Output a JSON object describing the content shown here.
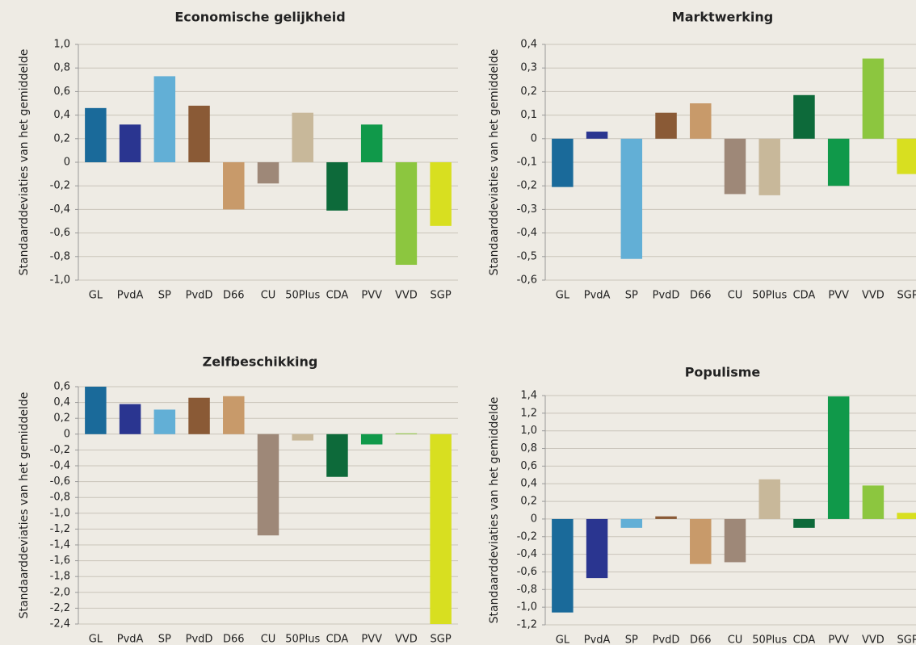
{
  "chart_data": [
    {
      "type": "bar",
      "title": "Economische gelijkheid",
      "y_label": "Standaarddeviaties van het gemiddelde",
      "categories": [
        "GL",
        "PvdA",
        "SP",
        "PvdD",
        "D66",
        "CU",
        "50Plus",
        "CDA",
        "PVV",
        "VVD",
        "SGP"
      ],
      "values": [
        0.46,
        0.32,
        0.73,
        0.48,
        -0.4,
        -0.18,
        0.42,
        -0.41,
        0.32,
        -0.87,
        -0.54
      ],
      "colors": [
        "#1a6a9a",
        "#2a3590",
        "#62afd6",
        "#8a5a36",
        "#c89a6a",
        "#9e8878",
        "#c8b89a",
        "#0d6a3a",
        "#10994a",
        "#8cc63f",
        "#d8df20"
      ],
      "ylim": [
        -1.0,
        1.0
      ],
      "grid": true,
      "yticks": [
        {
          "value": 1.0,
          "label": "1,0"
        },
        {
          "value": 0.8,
          "label": "0,8"
        },
        {
          "value": 0.6,
          "label": "0,6"
        },
        {
          "value": 0.4,
          "label": "0,4"
        },
        {
          "value": 0.2,
          "label": "0,2"
        },
        0,
        {
          "value": -0.2,
          "label": "-0,2"
        },
        {
          "value": -0.4,
          "label": "-0,4"
        },
        {
          "value": -0.6,
          "label": "-0,6"
        },
        {
          "value": -0.8,
          "label": "-0,8"
        },
        {
          "value": -1.0,
          "label": "-1,0"
        }
      ]
    },
    {
      "type": "bar",
      "title": "Marktwerking",
      "y_label": "Standaarddeviaties van het gemiddelde",
      "categories": [
        "GL",
        "PvdA",
        "SP",
        "PvdD",
        "D66",
        "CU",
        "50Plus",
        "CDA",
        "PVV",
        "VVD",
        "SGP"
      ],
      "values": [
        -0.205,
        0.03,
        -0.51,
        0.11,
        0.15,
        -0.235,
        -0.24,
        0.185,
        -0.2,
        0.34,
        -0.15
      ],
      "colors": [
        "#1a6a9a",
        "#2a3590",
        "#62afd6",
        "#8a5a36",
        "#c89a6a",
        "#9e8878",
        "#c8b89a",
        "#0d6a3a",
        "#10994a",
        "#8cc63f",
        "#d8df20"
      ],
      "ylim": [
        -0.6,
        0.4
      ],
      "grid": true,
      "yticks": [
        {
          "value": 0.4,
          "label": "0,4"
        },
        {
          "value": 0.3,
          "label": "0,3"
        },
        {
          "value": 0.2,
          "label": "0,2"
        },
        {
          "value": 0.1,
          "label": "0,1"
        },
        0,
        {
          "value": -0.1,
          "label": "-0,1"
        },
        {
          "value": -0.2,
          "label": "-0,2"
        },
        {
          "value": -0.3,
          "label": "-0,3"
        },
        {
          "value": -0.4,
          "label": "-0,4"
        },
        {
          "value": -0.5,
          "label": "-0,5"
        },
        {
          "value": -0.6,
          "label": "-0,6"
        }
      ]
    },
    {
      "type": "bar",
      "title": "Zelfbeschikking",
      "y_label": "Standaarddeviaties van het gemiddelde",
      "categories": [
        "GL",
        "PvdA",
        "SP",
        "PvdD",
        "D66",
        "CU",
        "50Plus",
        "CDA",
        "PVV",
        "VVD",
        "SGP"
      ],
      "values": [
        0.6,
        0.38,
        0.31,
        0.46,
        0.48,
        -1.28,
        -0.08,
        -0.54,
        -0.13,
        0.01,
        -2.4
      ],
      "colors": [
        "#1a6a9a",
        "#2a3590",
        "#62afd6",
        "#8a5a36",
        "#c89a6a",
        "#9e8878",
        "#c8b89a",
        "#0d6a3a",
        "#10994a",
        "#8cc63f",
        "#d8df20"
      ],
      "ylim": [
        -2.4,
        0.6
      ],
      "grid": true,
      "yticks": [
        {
          "value": 0.6,
          "label": "0,6"
        },
        {
          "value": 0.4,
          "label": "0,4"
        },
        {
          "value": 0.2,
          "label": "0,2"
        },
        0,
        {
          "value": -0.2,
          "label": "-0,2"
        },
        {
          "value": -0.4,
          "label": "-0,4"
        },
        {
          "value": -0.6,
          "label": "-0,6"
        },
        {
          "value": -0.8,
          "label": "-0,8"
        },
        {
          "value": -1.0,
          "label": "-1,0"
        },
        {
          "value": -1.2,
          "label": "-1,2"
        },
        {
          "value": -1.4,
          "label": "-1,4"
        },
        {
          "value": -1.6,
          "label": "-1,6"
        },
        {
          "value": -1.8,
          "label": "-1,8"
        },
        {
          "value": -2.0,
          "label": "-2,0"
        },
        {
          "value": -2.2,
          "label": "-2,2"
        },
        {
          "value": -2.4,
          "label": "-2,4"
        }
      ]
    },
    {
      "type": "bar",
      "title": "Populisme",
      "y_label": "Standaarddeviaties van het gemiddelde",
      "categories": [
        "GL",
        "PvdA",
        "SP",
        "PvdD",
        "D66",
        "CU",
        "50Plus",
        "CDA",
        "PVV",
        "VVD",
        "SGP"
      ],
      "values": [
        -1.06,
        -0.67,
        -0.1,
        0.03,
        -0.51,
        -0.49,
        0.45,
        -0.1,
        1.39,
        0.38,
        0.07
      ],
      "colors": [
        "#1a6a9a",
        "#2a3590",
        "#62afd6",
        "#8a5a36",
        "#c89a6a",
        "#9e8878",
        "#c8b89a",
        "#0d6a3a",
        "#10994a",
        "#8cc63f",
        "#d8df20"
      ],
      "ylim": [
        -1.2,
        1.4
      ],
      "grid": true,
      "yticks": [
        {
          "value": 1.4,
          "label": "1,4"
        },
        {
          "value": 1.2,
          "label": "1,2"
        },
        {
          "value": 1.0,
          "label": "1,0"
        },
        {
          "value": 0.8,
          "label": "0,8"
        },
        {
          "value": 0.6,
          "label": "0,6"
        },
        {
          "value": 0.4,
          "label": "0,4"
        },
        {
          "value": 0.2,
          "label": "0,2"
        },
        0,
        {
          "value": -0.2,
          "label": "-0,2"
        },
        {
          "value": -0.4,
          "label": "-0,4"
        },
        {
          "value": -0.6,
          "label": "-0,6"
        },
        {
          "value": -0.8,
          "label": "-0,8"
        },
        {
          "value": -1.0,
          "label": "-1,0"
        },
        {
          "value": -1.2,
          "label": "-1,2"
        }
      ]
    }
  ]
}
